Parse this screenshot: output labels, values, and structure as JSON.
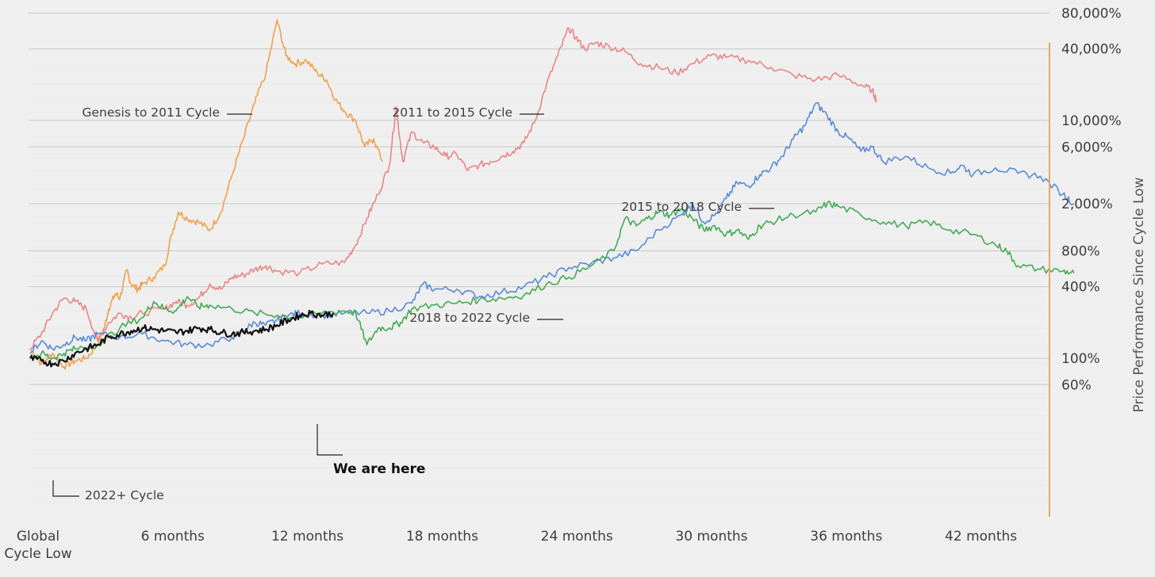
{
  "chart_data": {
    "type": "line",
    "title": "",
    "xlabel": "",
    "ylabel": "Price Performance Since Cycle Low",
    "y_scale": "log",
    "ylim": [
      50,
      80000
    ],
    "xlim": [
      0,
      47
    ],
    "x_unit": "months",
    "grid": true,
    "legend": "none (inline series labels)",
    "x_ticks": [
      {
        "value": 0,
        "label": "Global\nCycle Low"
      },
      {
        "value": 6,
        "label": "6 months"
      },
      {
        "value": 12,
        "label": "12 months"
      },
      {
        "value": 18,
        "label": "18 months"
      },
      {
        "value": 24,
        "label": "24 months"
      },
      {
        "value": 30,
        "label": "30 months"
      },
      {
        "value": 36,
        "label": "36 months"
      },
      {
        "value": 42,
        "label": "42 months"
      }
    ],
    "y_ticks": [
      {
        "value": 80000,
        "label": "80,000%"
      },
      {
        "value": 40000,
        "label": "40,000%"
      },
      {
        "value": 10000,
        "label": "10,000%"
      },
      {
        "value": 6000,
        "label": "6,000%"
      },
      {
        "value": 2000,
        "label": "2,000%"
      },
      {
        "value": 800,
        "label": "800%"
      },
      {
        "value": 400,
        "label": "400%"
      },
      {
        "value": 100,
        "label": "100%"
      },
      {
        "value": 60,
        "label": "60%"
      }
    ],
    "series": [
      {
        "name": "Genesis to 2011 Cycle",
        "color": "#f0a04b",
        "points": [
          [
            0,
            120
          ],
          [
            0.5,
            90
          ],
          [
            1,
            110
          ],
          [
            1.5,
            85
          ],
          [
            2,
            95
          ],
          [
            2.5,
            100
          ],
          [
            3,
            130
          ],
          [
            3.3,
            180
          ],
          [
            3.5,
            260
          ],
          [
            3.8,
            350
          ],
          [
            4,
            320
          ],
          [
            4.3,
            550
          ],
          [
            4.5,
            420
          ],
          [
            4.8,
            380
          ],
          [
            5,
            420
          ],
          [
            5.5,
            480
          ],
          [
            6,
            600
          ],
          [
            6.3,
            1100
          ],
          [
            6.6,
            1700
          ],
          [
            7,
            1500
          ],
          [
            7.5,
            1400
          ],
          [
            8,
            1200
          ],
          [
            8.5,
            1700
          ],
          [
            9,
            3500
          ],
          [
            9.5,
            7000
          ],
          [
            10,
            14000
          ],
          [
            10.5,
            25000
          ],
          [
            11,
            70000
          ],
          [
            11.4,
            35000
          ],
          [
            11.8,
            30000
          ],
          [
            12.3,
            32000
          ],
          [
            12.8,
            25000
          ],
          [
            13.2,
            22000
          ],
          [
            13.6,
            15000
          ],
          [
            14,
            12000
          ],
          [
            14.5,
            10000
          ],
          [
            14.9,
            6000
          ],
          [
            15.3,
            7000
          ],
          [
            15.7,
            4500
          ]
        ]
      },
      {
        "name": "2011 to 2015 Cycle",
        "color": "#e98584",
        "points": [
          [
            0,
            120
          ],
          [
            0.5,
            160
          ],
          [
            1,
            240
          ],
          [
            1.5,
            320
          ],
          [
            2,
            300
          ],
          [
            2.5,
            260
          ],
          [
            3,
            140
          ],
          [
            3.5,
            200
          ],
          [
            4,
            240
          ],
          [
            4.5,
            220
          ],
          [
            5,
            240
          ],
          [
            6,
            260
          ],
          [
            6.5,
            300
          ],
          [
            7,
            280
          ],
          [
            7.5,
            320
          ],
          [
            8,
            420
          ],
          [
            8.5,
            380
          ],
          [
            9,
            480
          ],
          [
            9.5,
            500
          ],
          [
            10,
            560
          ],
          [
            10.5,
            600
          ],
          [
            11,
            540
          ],
          [
            12,
            520
          ],
          [
            13,
            620
          ],
          [
            14,
            640
          ],
          [
            14.5,
            900
          ],
          [
            15,
            1500
          ],
          [
            15.5,
            2400
          ],
          [
            16,
            4200
          ],
          [
            16.3,
            13000
          ],
          [
            16.6,
            4500
          ],
          [
            17,
            8000
          ],
          [
            17.5,
            6500
          ],
          [
            18,
            6000
          ],
          [
            18.5,
            5000
          ],
          [
            19,
            5200
          ],
          [
            19.5,
            3800
          ],
          [
            20,
            4200
          ],
          [
            20.5,
            4500
          ],
          [
            21,
            5000
          ],
          [
            21.5,
            5500
          ],
          [
            22,
            6500
          ],
          [
            22.5,
            10000
          ],
          [
            23,
            20000
          ],
          [
            23.5,
            35000
          ],
          [
            24,
            60000
          ],
          [
            24.3,
            50000
          ],
          [
            24.7,
            40000
          ],
          [
            25.2,
            45000
          ],
          [
            25.8,
            42000
          ],
          [
            26.5,
            38000
          ],
          [
            27.2,
            30000
          ],
          [
            28,
            28000
          ],
          [
            28.8,
            25000
          ],
          [
            29.5,
            30000
          ],
          [
            30.3,
            35000
          ],
          [
            31,
            34000
          ],
          [
            32,
            32000
          ],
          [
            33,
            28000
          ],
          [
            34,
            24000
          ],
          [
            35,
            22000
          ],
          [
            36,
            24000
          ],
          [
            37,
            20000
          ],
          [
            37.5,
            18000
          ],
          [
            37.7,
            15000
          ]
        ]
      },
      {
        "name": "2015 to 2018 Cycle",
        "color": "#5a8bd6",
        "points": [
          [
            0,
            110
          ],
          [
            0.5,
            140
          ],
          [
            1,
            120
          ],
          [
            1.5,
            130
          ],
          [
            2,
            150
          ],
          [
            2.5,
            140
          ],
          [
            3,
            160
          ],
          [
            4,
            150
          ],
          [
            5,
            160
          ],
          [
            6,
            140
          ],
          [
            7,
            130
          ],
          [
            8,
            130
          ],
          [
            9,
            150
          ],
          [
            9.5,
            170
          ],
          [
            10,
            200
          ],
          [
            10.5,
            190
          ],
          [
            11,
            210
          ],
          [
            11.5,
            230
          ],
          [
            12,
            240
          ],
          [
            13,
            230
          ],
          [
            14,
            240
          ],
          [
            15,
            240
          ],
          [
            16,
            250
          ],
          [
            17,
            290
          ],
          [
            17.5,
            420
          ],
          [
            18,
            380
          ],
          [
            19,
            380
          ],
          [
            20,
            330
          ],
          [
            21,
            360
          ],
          [
            22,
            400
          ],
          [
            23,
            480
          ],
          [
            24,
            580
          ],
          [
            25,
            630
          ],
          [
            26,
            700
          ],
          [
            27,
            800
          ],
          [
            28,
            1200
          ],
          [
            29,
            1600
          ],
          [
            29.5,
            2000
          ],
          [
            30,
            1400
          ],
          [
            30.5,
            1600
          ],
          [
            31,
            2200
          ],
          [
            31.5,
            3000
          ],
          [
            32,
            2800
          ],
          [
            32.5,
            3500
          ],
          [
            33,
            4000
          ],
          [
            33.5,
            5000
          ],
          [
            34,
            7000
          ],
          [
            34.5,
            9000
          ],
          [
            35,
            14000
          ],
          [
            35.5,
            11000
          ],
          [
            36,
            8000
          ],
          [
            36.5,
            7000
          ],
          [
            37,
            5500
          ],
          [
            37.5,
            6000
          ],
          [
            38,
            4500
          ],
          [
            39,
            5000
          ],
          [
            40,
            4000
          ],
          [
            41,
            3600
          ],
          [
            41.5,
            4200
          ],
          [
            42,
            3500
          ],
          [
            43,
            4000
          ],
          [
            44,
            3600
          ],
          [
            45,
            3400
          ],
          [
            46,
            2400
          ],
          [
            46.5,
            2000
          ]
        ]
      },
      {
        "name": "2018 to 2022 Cycle",
        "color": "#43aa55",
        "points": [
          [
            0,
            100
          ],
          [
            0.5,
            110
          ],
          [
            1,
            100
          ],
          [
            1.5,
            110
          ],
          [
            2,
            120
          ],
          [
            3,
            130
          ],
          [
            4,
            180
          ],
          [
            5,
            220
          ],
          [
            5.5,
            300
          ],
          [
            6,
            260
          ],
          [
            6.5,
            250
          ],
          [
            7,
            330
          ],
          [
            7.5,
            270
          ],
          [
            8,
            280
          ],
          [
            9,
            260
          ],
          [
            10,
            240
          ],
          [
            11,
            230
          ],
          [
            12,
            220
          ],
          [
            13,
            240
          ],
          [
            14,
            250
          ],
          [
            14.5,
            240
          ],
          [
            15,
            130
          ],
          [
            15.5,
            180
          ],
          [
            16,
            180
          ],
          [
            16.5,
            200
          ],
          [
            17,
            260
          ],
          [
            18,
            280
          ],
          [
            19,
            290
          ],
          [
            20,
            310
          ],
          [
            21,
            320
          ],
          [
            22,
            340
          ],
          [
            23,
            420
          ],
          [
            24,
            480
          ],
          [
            25,
            600
          ],
          [
            26,
            800
          ],
          [
            26.5,
            1500
          ],
          [
            27,
            1300
          ],
          [
            27.5,
            1500
          ],
          [
            28,
            1700
          ],
          [
            28.5,
            1600
          ],
          [
            29,
            1800
          ],
          [
            29.5,
            1500
          ],
          [
            30,
            1200
          ],
          [
            30.5,
            1300
          ],
          [
            31,
            1100
          ],
          [
            31.5,
            1200
          ],
          [
            32,
            1000
          ],
          [
            32.5,
            1300
          ],
          [
            33,
            1400
          ],
          [
            34,
            1600
          ],
          [
            35,
            1700
          ],
          [
            35.5,
            2000
          ],
          [
            36,
            1900
          ],
          [
            37,
            1600
          ],
          [
            38,
            1400
          ],
          [
            39,
            1300
          ],
          [
            40,
            1400
          ],
          [
            41,
            1200
          ],
          [
            42,
            1100
          ],
          [
            43,
            900
          ],
          [
            43.5,
            800
          ],
          [
            44,
            600
          ],
          [
            45,
            560
          ],
          [
            46,
            540
          ],
          [
            46.5,
            520
          ]
        ]
      },
      {
        "name": "2022+ Cycle",
        "color": "#111111",
        "points": [
          [
            0,
            100
          ],
          [
            0.5,
            95
          ],
          [
            1,
            90
          ],
          [
            1.5,
            95
          ],
          [
            2,
            110
          ],
          [
            2.5,
            120
          ],
          [
            3,
            130
          ],
          [
            3.5,
            150
          ],
          [
            4,
            160
          ],
          [
            4.5,
            170
          ],
          [
            5,
            180
          ],
          [
            5.5,
            175
          ],
          [
            6,
            170
          ],
          [
            6.5,
            165
          ],
          [
            7,
            170
          ],
          [
            7.5,
            180
          ],
          [
            8,
            175
          ],
          [
            8.5,
            165
          ],
          [
            9,
            160
          ],
          [
            9.5,
            165
          ],
          [
            10,
            170
          ],
          [
            10.5,
            175
          ],
          [
            11,
            190
          ],
          [
            11.5,
            210
          ],
          [
            12,
            230
          ],
          [
            12.5,
            240
          ],
          [
            13,
            230
          ],
          [
            13.5,
            240
          ]
        ]
      }
    ],
    "annotations": [
      {
        "text": "Genesis to 2011 Cycle",
        "series": "Genesis to 2011 Cycle"
      },
      {
        "text": "2011 to 2015 Cycle",
        "series": "2011 to 2015 Cycle"
      },
      {
        "text": "2015 to 2018 Cycle",
        "series": "2015 to 2018 Cycle"
      },
      {
        "text": "2018 to 2022 Cycle",
        "series": "2018 to 2022 Cycle"
      },
      {
        "text": "2022+ Cycle",
        "series": "2022+ Cycle"
      },
      {
        "text": "We are here",
        "series": "2022+ Cycle",
        "bold": true
      }
    ],
    "axis_color": "#e6a861"
  }
}
